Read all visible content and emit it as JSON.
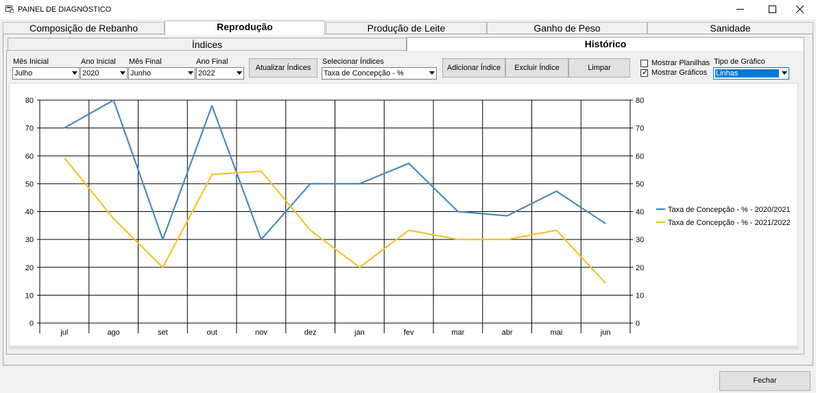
{
  "window": {
    "title": "PAINEL DE DIAGNÓSTICO"
  },
  "main_tabs": [
    {
      "label": "Composição de Rebanho",
      "selected": false
    },
    {
      "label": "Reprodução",
      "selected": true
    },
    {
      "label": "Produção de Leite",
      "selected": false
    },
    {
      "label": "Ganho de Peso",
      "selected": false
    },
    {
      "label": "Sanidade",
      "selected": false
    }
  ],
  "sub_tabs": [
    {
      "label": "Índices",
      "selected": false
    },
    {
      "label": "Histórico",
      "selected": true
    }
  ],
  "filters": {
    "mes_inicial": {
      "label": "Mês Inicial",
      "value": "Julho"
    },
    "ano_inicial": {
      "label": "Ano Inicial",
      "value": "2020"
    },
    "mes_final": {
      "label": "Mês Final",
      "value": "Junho"
    },
    "ano_final": {
      "label": "Ano Final",
      "value": "2022"
    },
    "selecionar_indices": {
      "label": "Selecionar Índices",
      "value": "Taxa de Concepção - %"
    },
    "tipo_grafico": {
      "label": "Tipo de Gráfico",
      "value": "Linhas"
    }
  },
  "buttons": {
    "atualizar": "Atualizar Índices",
    "adicionar": "Adicionar Índice",
    "excluir": "Excluir Índice",
    "limpar": "Limpar",
    "fechar": "Fechar"
  },
  "checkboxes": {
    "mostrar_planilhas": {
      "label": "Mostrar Planilhas",
      "checked": false
    },
    "mostrar_graficos": {
      "label": "Mostrar Gráficos",
      "checked": true
    }
  },
  "chart_data": {
    "type": "line",
    "categories": [
      "jul",
      "ago",
      "set",
      "out",
      "nov",
      "dez",
      "jan",
      "fev",
      "mar",
      "abr",
      "mai",
      "jun"
    ],
    "series": [
      {
        "name": "Taxa de Concepção - % - 2020/2021",
        "color": "#4a8ab8",
        "values": [
          70,
          80,
          30,
          78,
          30,
          50,
          50,
          57.3,
          40,
          38.5,
          47.3,
          35.7
        ]
      },
      {
        "name": "Taxa de Concepção - % - 2021/2022",
        "color": "#f2c230",
        "values": [
          59.3,
          37.5,
          20,
          53.3,
          54.5,
          33.3,
          20,
          33.3,
          30,
          30,
          33.3,
          14.3
        ]
      }
    ],
    "ylim": [
      0,
      80
    ],
    "yticks": [
      0,
      10,
      20,
      30,
      40,
      50,
      60,
      70,
      80
    ],
    "secondary_y_axis": true,
    "grid": true,
    "legend_position": "right"
  }
}
